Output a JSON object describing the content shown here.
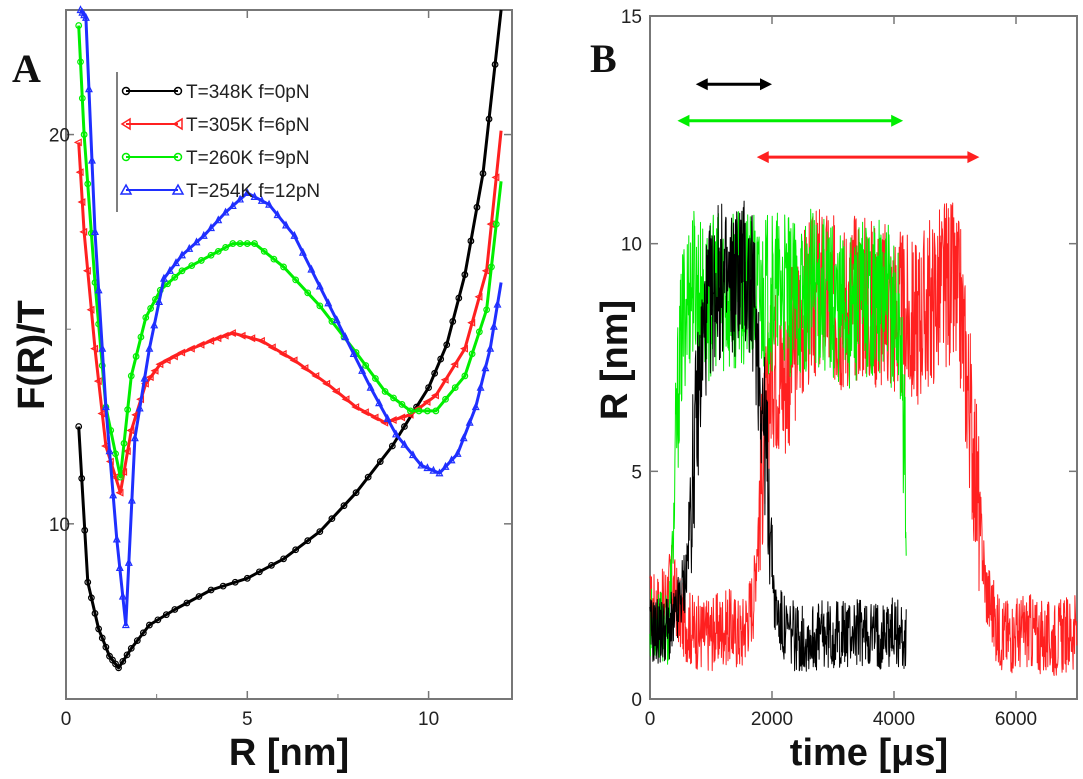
{
  "chart_data": [
    {
      "panel": "A",
      "type": "line",
      "xlabel": "R [nm]",
      "ylabel": "F(R)/T",
      "xlim": [
        0,
        12.3
      ],
      "ylim": [
        5.5,
        23.2
      ],
      "xticks": [
        0,
        5,
        10
      ],
      "yticks": [
        10,
        20
      ],
      "series": [
        {
          "name": "T=348K  f=0pN",
          "color": "#000000",
          "marker": "circle",
          "x": [
            0.35,
            0.6,
            0.9,
            1.2,
            1.45,
            1.8,
            2.3,
            3,
            4,
            5,
            6,
            7,
            8,
            9,
            10,
            10.5,
            11,
            11.5,
            12
          ],
          "y": [
            12.5,
            8.5,
            7.3,
            6.6,
            6.3,
            6.8,
            7.4,
            7.8,
            8.3,
            8.6,
            9.1,
            9.8,
            10.8,
            12.0,
            13.5,
            14.6,
            16.4,
            19.0,
            23.4
          ]
        },
        {
          "name": "T=305K  f=6pN",
          "color": "#ff2020",
          "marker": "triangle-left",
          "x": [
            0.35,
            0.5,
            0.8,
            1.1,
            1.5,
            1.8,
            2.2,
            2.6,
            3.2,
            4,
            4.6,
            5.4,
            6.3,
            7.2,
            8,
            8.8,
            9.5,
            10.2,
            11,
            11.6,
            12
          ],
          "y": [
            19.8,
            17.5,
            14.5,
            12,
            10.8,
            12.4,
            13.6,
            14.1,
            14.4,
            14.7,
            14.9,
            14.7,
            14.2,
            13.6,
            13.0,
            12.6,
            12.8,
            13.3,
            14.5,
            16.5,
            20.1
          ]
        },
        {
          "name": "T=260K  f=9pN",
          "color": "#00ee00",
          "marker": "circle",
          "x": [
            0.35,
            0.5,
            0.8,
            1.1,
            1.5,
            1.8,
            2.2,
            2.6,
            3.2,
            4,
            4.6,
            5.2,
            6,
            7,
            8,
            8.8,
            9.5,
            10.2,
            11,
            11.6,
            12
          ],
          "y": [
            22.8,
            20,
            16.2,
            13,
            11.2,
            13.8,
            15.3,
            16,
            16.5,
            16.9,
            17.2,
            17.2,
            16.6,
            15.6,
            14.4,
            13.4,
            12.9,
            12.9,
            13.8,
            15.5,
            18.8
          ]
        },
        {
          "name": "T=254K  f=12pN",
          "color": "#1f2fff",
          "marker": "triangle-up",
          "x": [
            0.4,
            0.55,
            0.8,
            1.1,
            1.4,
            1.65,
            1.9,
            2.3,
            2.7,
            3.2,
            3.8,
            4.4,
            5,
            5.6,
            6.3,
            7,
            7.7,
            8.4,
            9.1,
            9.8,
            10.3,
            10.8,
            11.3,
            11.7,
            12
          ],
          "y": [
            27.5,
            23,
            17.5,
            13,
            9.6,
            7.4,
            12.2,
            14.5,
            16.3,
            16.9,
            17.4,
            18,
            18.5,
            18.2,
            17.4,
            16.1,
            14.8,
            13.5,
            12.3,
            11.5,
            11.3,
            11.8,
            13.0,
            14.5,
            16.2
          ]
        }
      ]
    },
    {
      "panel": "B",
      "type": "line",
      "xlabel": "time [μs]",
      "ylabel": "R [nm]",
      "xlim": [
        0,
        7000
      ],
      "ylim": [
        0,
        15
      ],
      "xticks": [
        0,
        2000,
        4000,
        6000
      ],
      "yticks": [
        0,
        5,
        10,
        15
      ],
      "series": [
        {
          "color": "#ff2020",
          "t": [
            0,
            200,
            350,
            500,
            700,
            900,
            1100,
            1300,
            1500,
            1700,
            1800,
            2000,
            2200,
            2500,
            2800,
            3100,
            3400,
            3700,
            4000,
            4300,
            4600,
            4900,
            5100,
            5300,
            5500,
            5700,
            5900,
            6200,
            6500,
            6800,
            7000
          ],
          "r": [
            2.0,
            2.0,
            2.6,
            1.8,
            1.5,
            1.4,
            1.5,
            1.6,
            1.4,
            2.2,
            4.5,
            7.5,
            7.0,
            8.5,
            9.0,
            8.6,
            8.9,
            8.7,
            8.5,
            8.2,
            8.7,
            9.2,
            8.5,
            5.5,
            2.5,
            1.5,
            1.4,
            1.5,
            1.3,
            1.4,
            1.5
          ]
        },
        {
          "color": "#00ee00",
          "t": [
            0,
            150,
            300,
            380,
            450,
            550,
            700,
            900,
            1100,
            1300,
            1500,
            1800,
            2100,
            2400,
            2700,
            3000,
            3300,
            3600,
            3900,
            4100,
            4200
          ],
          "r": [
            1.7,
            1.6,
            1.5,
            3.5,
            6.5,
            8.5,
            9.2,
            8.6,
            9.0,
            8.8,
            9.1,
            8.8,
            9.0,
            8.7,
            9.1,
            8.8,
            8.5,
            8.9,
            8.7,
            8.2,
            4.5
          ]
        },
        {
          "color": "#000000",
          "t": [
            0,
            200,
            400,
            600,
            750,
            900,
            1100,
            1300,
            1500,
            1700,
            1900,
            2050,
            2200,
            2500,
            2800,
            3100,
            3400,
            3700,
            4000,
            4200
          ],
          "r": [
            1.5,
            1.5,
            1.6,
            2.8,
            6.0,
            8.3,
            9.2,
            9.0,
            9.5,
            8.8,
            5.5,
            2.0,
            1.5,
            1.3,
            1.4,
            1.4,
            1.5,
            1.4,
            1.5,
            1.3
          ]
        }
      ],
      "annotations": [
        {
          "type": "double-arrow",
          "color": "#000000",
          "t_from": 750,
          "t_to": 2000,
          "r": 13.5
        },
        {
          "type": "double-arrow",
          "color": "#00ee00",
          "t_from": 450,
          "t_to": 4150,
          "r": 12.7
        },
        {
          "type": "double-arrow",
          "color": "#ff2020",
          "t_from": 1750,
          "t_to": 5400,
          "r": 11.9
        }
      ]
    }
  ]
}
